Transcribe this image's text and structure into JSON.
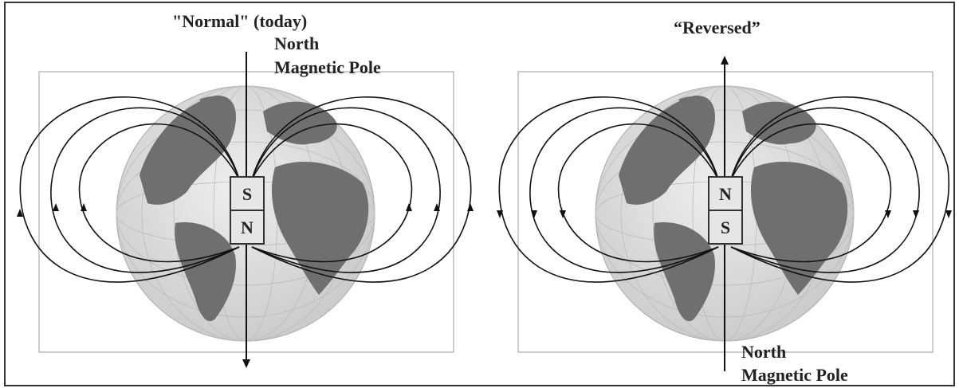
{
  "left_panel": {
    "title": "\"Normal\" (today)",
    "pole_label_line1": "North",
    "pole_label_line2": "Magnetic Pole",
    "magnet_top": "S",
    "magnet_bottom": "N"
  },
  "right_panel": {
    "title": "“Reversed”",
    "pole_label_line1": "North",
    "pole_label_line2": "Magnetic Pole",
    "magnet_top": "N",
    "magnet_bottom": "S"
  },
  "colors": {
    "globe_land": "#6f6f6f",
    "globe_ocean": "#dcdcdc",
    "field_lines": "#111111",
    "magnet_fill": "#e6e6e6"
  }
}
